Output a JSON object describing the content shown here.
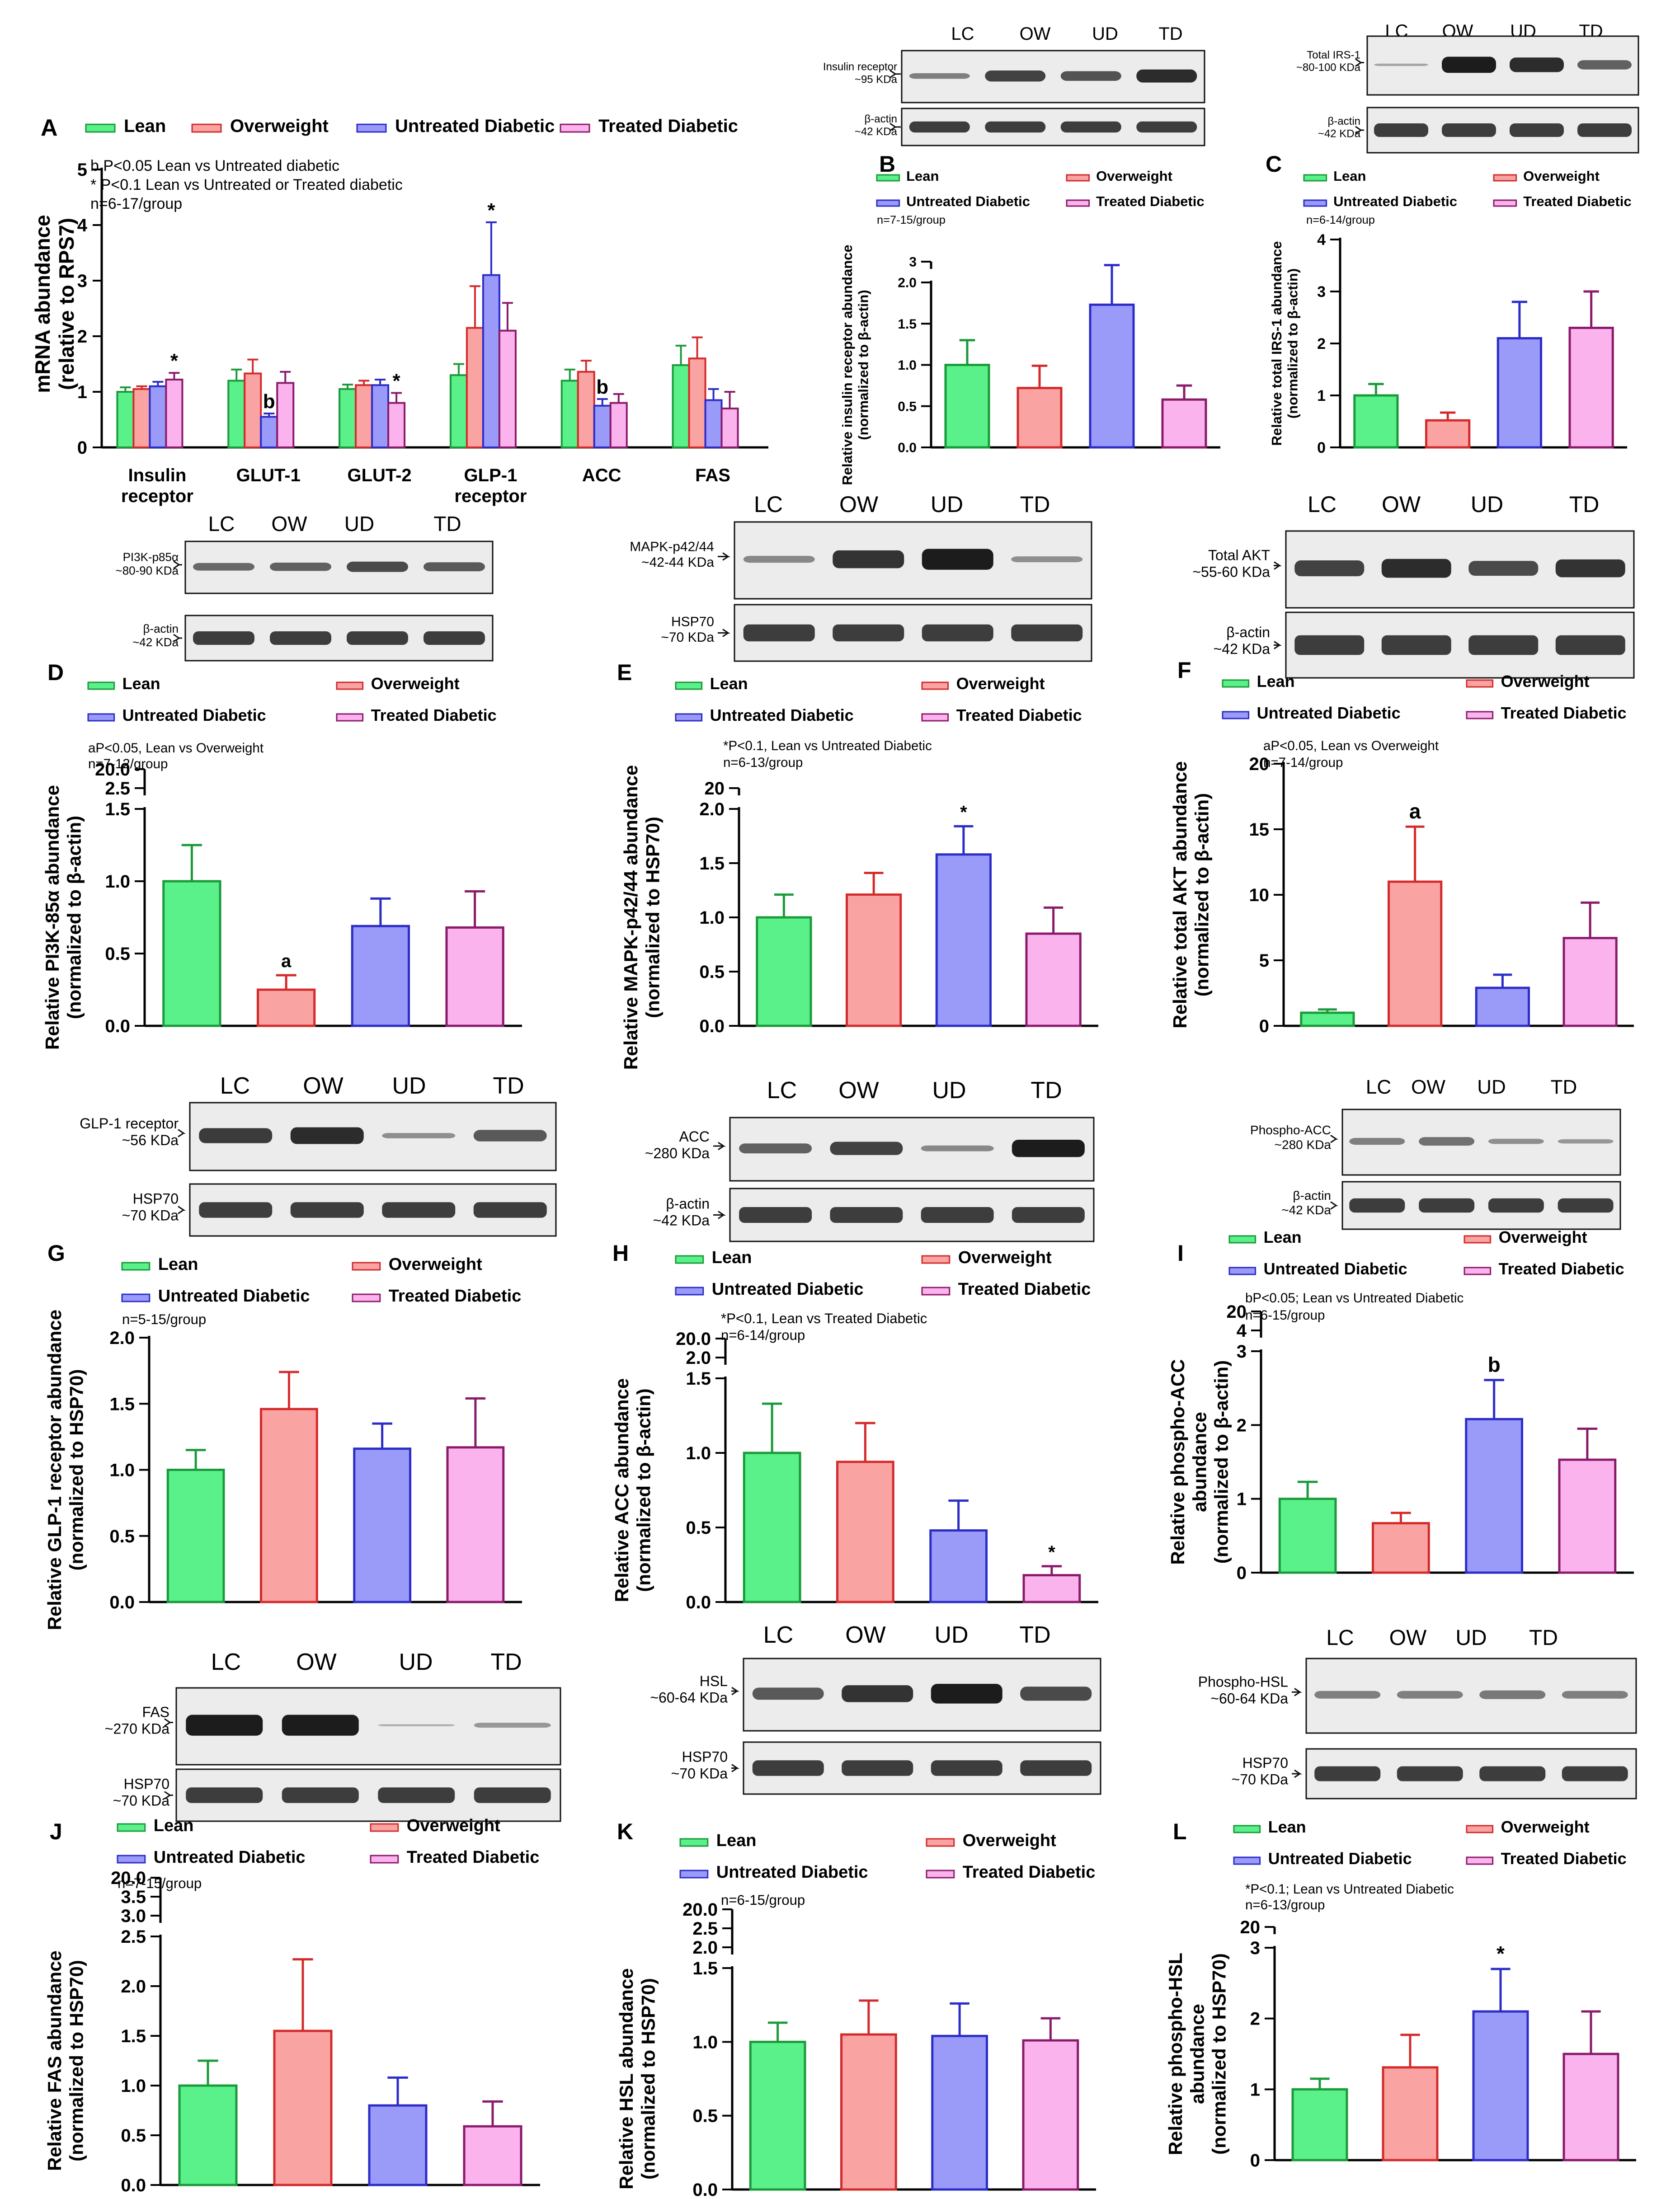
{
  "colors": {
    "lean": "#5af08a",
    "lean_edge": "#1a9a3a",
    "overweight": "#f9a3a3",
    "overweight_edge": "#d42a2a",
    "untreated": "#9a9af8",
    "untreated_edge": "#2c2cc8",
    "treated": "#fbb3ee",
    "treated_edge": "#8a1a6a"
  },
  "groups": [
    "Lean",
    "Overweight",
    "Untreated Diabetic",
    "Treated Diabetic"
  ],
  "lanes": [
    "LC",
    "OW",
    "UD",
    "TD"
  ],
  "blots": {
    "B": {
      "top": "Insulin receptor\n~95 KDa",
      "bottom": "β-actin\n~42 KDa"
    },
    "C": {
      "top": "Total IRS-1\n~80-100 KDa",
      "bottom": "β-actin\n~42 KDa"
    },
    "D": {
      "top": "PI3K-p85α\n~80-90 KDa",
      "bottom": "β-actin\n~42 KDa"
    },
    "E": {
      "top": "MAPK-p42/44\n~42-44 KDa",
      "bottom": "HSP70\n~70 KDa"
    },
    "F": {
      "top": "Total AKT\n~55-60 KDa",
      "bottom": "β-actin\n~42 KDa"
    },
    "G": {
      "top": "GLP-1 receptor\n~56 KDa",
      "bottom": "HSP70\n~70 KDa"
    },
    "H": {
      "top": "ACC\n~280 KDa",
      "bottom": "β-actin\n~42 KDa"
    },
    "I": {
      "top": "Phospho-ACC\n~280 KDa",
      "bottom": "β-actin\n~42 KDa"
    },
    "J": {
      "top": "FAS\n~270 KDa",
      "bottom": "HSP70\n~70 KDa"
    },
    "K": {
      "top": "HSL\n~60-64 KDa",
      "bottom": "HSP70\n~70 KDa"
    },
    "L": {
      "top": "Phospho-HSL\n~60-64 KDa",
      "bottom": "HSP70\n~70 KDa"
    }
  },
  "chart_data": [
    {
      "id": "A",
      "type": "bar",
      "ylabel": "mRNA abundance\n(relative to RPS7)",
      "ylim": [
        0,
        5
      ],
      "yticks": [
        0,
        1,
        2,
        3,
        4,
        5
      ],
      "categories": [
        "Insulin\nreceptor",
        "GLUT-1",
        "GLUT-2",
        "GLP-1\nreceptor",
        "ACC",
        "FAS"
      ],
      "notes": [
        "b P<0.05 Lean vs Untreated diabetic",
        "* P<0.1 Lean vs Untreated or Treated diabetic",
        "n=6-17/group"
      ],
      "series": [
        {
          "name": "Lean",
          "values": [
            1.0,
            1.2,
            1.05,
            1.3,
            1.2,
            1.48
          ],
          "errors": [
            0.08,
            0.2,
            0.08,
            0.2,
            0.2,
            0.35
          ],
          "marks": [
            "",
            "",
            "",
            "",
            "",
            ""
          ]
        },
        {
          "name": "Overweight",
          "values": [
            1.05,
            1.33,
            1.12,
            2.15,
            1.36,
            1.6
          ],
          "errors": [
            0.05,
            0.25,
            0.08,
            0.75,
            0.2,
            0.38
          ],
          "marks": [
            "",
            "",
            "",
            "",
            "",
            ""
          ]
        },
        {
          "name": "Untreated Diabetic",
          "values": [
            1.1,
            0.55,
            1.12,
            3.1,
            0.75,
            0.85
          ],
          "errors": [
            0.08,
            0.06,
            0.1,
            0.95,
            0.12,
            0.2
          ],
          "marks": [
            "",
            "b",
            "",
            "*",
            "b",
            ""
          ]
        },
        {
          "name": "Treated Diabetic",
          "values": [
            1.22,
            1.16,
            0.8,
            2.1,
            0.8,
            0.7
          ],
          "errors": [
            0.12,
            0.2,
            0.18,
            0.5,
            0.16,
            0.3
          ],
          "marks": [
            "*",
            "",
            "*",
            "",
            "",
            ""
          ]
        }
      ]
    },
    {
      "id": "B",
      "type": "bar",
      "ylabel": "Relative insulin receptor abundance\n(normalized to β-actin)",
      "ylim": [
        0,
        2.0
      ],
      "yticks": [
        0.0,
        0.5,
        1.0,
        1.5,
        2.0
      ],
      "axis_break": "3",
      "tick_labels": [
        "0.0",
        "0.5",
        "1.0",
        "1.5",
        "2.0"
      ],
      "notes": [
        "n=7-15/group"
      ],
      "values": [
        1.0,
        0.72,
        1.73,
        0.58
      ],
      "errors": [
        0.3,
        0.27,
        0.48,
        0.17
      ],
      "marks": [
        "",
        "",
        "",
        ""
      ]
    },
    {
      "id": "C",
      "type": "bar",
      "ylabel": "Relative total IRS-1 abundance\n(normalized to β-actin)",
      "ylim": [
        0,
        4
      ],
      "yticks": [
        0,
        1,
        2,
        3,
        4
      ],
      "axis_break": "",
      "tick_labels": [
        "0",
        "1",
        "2",
        "3",
        "4"
      ],
      "notes": [
        "n=6-14/group"
      ],
      "values": [
        1.0,
        0.52,
        2.1,
        2.3
      ],
      "errors": [
        0.22,
        0.15,
        0.7,
        0.7
      ],
      "marks": [
        "",
        "",
        "",
        ""
      ]
    },
    {
      "id": "D",
      "type": "bar",
      "ylabel": "Relative PI3K-85α abundance\n(normalized to β-actin)",
      "ylim": [
        0,
        1.5
      ],
      "yticks": [
        0.0,
        0.5,
        1.0,
        1.5
      ],
      "axis_break": "20.0\n2.5",
      "tick_labels": [
        "0.0",
        "0.5",
        "1.0",
        "1.5"
      ],
      "notes": [
        "aP<0.05, Lean vs Overweight",
        "n=7-12/group"
      ],
      "values": [
        1.0,
        0.25,
        0.69,
        0.68
      ],
      "errors": [
        0.25,
        0.1,
        0.19,
        0.25
      ],
      "marks": [
        "",
        "a",
        "",
        ""
      ]
    },
    {
      "id": "E",
      "type": "bar",
      "ylabel": "Relative MAPK-p42/44 abundance\n(normalized to HSP70)",
      "ylim": [
        0,
        2.0
      ],
      "yticks": [
        0.0,
        0.5,
        1.0,
        1.5,
        2.0
      ],
      "axis_break": "20",
      "tick_labels": [
        "0.0",
        "0.5",
        "1.0",
        "1.5",
        "2.0"
      ],
      "notes": [
        "*P<0.1, Lean vs Untreated Diabetic",
        "n=6-13/group"
      ],
      "values": [
        1.0,
        1.21,
        1.58,
        0.85
      ],
      "errors": [
        0.21,
        0.2,
        0.26,
        0.24
      ],
      "marks": [
        "",
        "",
        "*",
        ""
      ]
    },
    {
      "id": "F",
      "type": "bar",
      "ylabel": "Relative total AKT abundance\n(normalized to β-actin)",
      "ylim": [
        0,
        20
      ],
      "yticks": [
        0,
        5,
        10,
        15,
        20
      ],
      "axis_break": "",
      "tick_labels": [
        "0",
        "5",
        "10",
        "15",
        "20"
      ],
      "notes": [
        "aP<0.05, Lean vs Overweight",
        "n=7-14/group"
      ],
      "values": [
        1.0,
        11.0,
        2.9,
        6.7
      ],
      "errors": [
        0.25,
        4.2,
        1.0,
        2.7
      ],
      "marks": [
        "",
        "a",
        "",
        ""
      ]
    },
    {
      "id": "G",
      "type": "bar",
      "ylabel": "Relative GLP-1 receptor abundance\n(normalized to HSP70)",
      "ylim": [
        0,
        2.0
      ],
      "yticks": [
        0.0,
        0.5,
        1.0,
        1.5,
        2.0
      ],
      "axis_break": "",
      "tick_labels": [
        "0.0",
        "0.5",
        "1.0",
        "1.5",
        "2.0"
      ],
      "notes": [
        "n=5-15/group"
      ],
      "values": [
        1.0,
        1.46,
        1.16,
        1.17
      ],
      "errors": [
        0.15,
        0.28,
        0.19,
        0.37
      ],
      "marks": [
        "",
        "",
        "",
        ""
      ]
    },
    {
      "id": "H",
      "type": "bar",
      "ylabel": "Relative ACC abundance\n(normalized to β-actin)",
      "ylim": [
        0,
        1.5
      ],
      "yticks": [
        0.0,
        0.5,
        1.0,
        1.5
      ],
      "axis_break": "20.0\n2.0",
      "tick_labels": [
        "0.0",
        "0.5",
        "1.0",
        "1.5"
      ],
      "notes": [
        "*P<0.1, Lean vs Treated Diabetic",
        "n=6-14/group"
      ],
      "values": [
        1.0,
        0.94,
        0.48,
        0.18
      ],
      "errors": [
        0.33,
        0.26,
        0.2,
        0.06
      ],
      "marks": [
        "",
        "",
        "",
        "*"
      ]
    },
    {
      "id": "I",
      "type": "bar",
      "ylabel": "Relative phospho-ACC\nabundance\n(normalized to β-actin)",
      "ylim": [
        0,
        3
      ],
      "yticks": [
        0,
        1,
        2,
        3
      ],
      "axis_break": "20\n4",
      "tick_labels": [
        "0",
        "1",
        "2",
        "3"
      ],
      "notes": [
        "bP<0.05; Lean vs Untreated Diabetic",
        "n=6-15/group"
      ],
      "values": [
        1.0,
        0.67,
        2.08,
        1.53
      ],
      "errors": [
        0.23,
        0.14,
        0.53,
        0.42
      ],
      "marks": [
        "",
        "",
        "b",
        ""
      ]
    },
    {
      "id": "J",
      "type": "bar",
      "ylabel": "Relative FAS abundance\n(normalized to HSP70)",
      "ylim": [
        0,
        2.5
      ],
      "yticks": [
        0.0,
        0.5,
        1.0,
        1.5,
        2.0,
        2.5
      ],
      "axis_break": "20.0\n3.5\n3.0",
      "tick_labels": [
        "0.0",
        "0.5",
        "1.0",
        "1.5",
        "2.0",
        "2.5"
      ],
      "notes": [
        "n=7-15/group"
      ],
      "values": [
        1.0,
        1.55,
        0.8,
        0.59
      ],
      "errors": [
        0.25,
        0.72,
        0.28,
        0.25
      ],
      "marks": [
        "",
        "",
        "",
        ""
      ]
    },
    {
      "id": "K",
      "type": "bar",
      "ylabel": "Relative HSL abundance\n(normalized to HSP70)",
      "ylim": [
        0,
        1.5
      ],
      "yticks": [
        0.0,
        0.5,
        1.0,
        1.5
      ],
      "axis_break": "20.0\n2.5\n2.0",
      "tick_labels": [
        "0.0",
        "0.5",
        "1.0",
        "1.5"
      ],
      "notes": [
        "n=6-15/group"
      ],
      "values": [
        1.0,
        1.05,
        1.04,
        1.01
      ],
      "errors": [
        0.13,
        0.23,
        0.22,
        0.15
      ],
      "marks": [
        "",
        "",
        "",
        ""
      ]
    },
    {
      "id": "L",
      "type": "bar",
      "ylabel": "Relative phospho-HSL\nabundance\n(normalized to HSP70)",
      "ylim": [
        0,
        3
      ],
      "yticks": [
        0,
        1,
        2,
        3
      ],
      "axis_break": "20",
      "tick_labels": [
        "0",
        "1",
        "2",
        "3"
      ],
      "notes": [
        "*P<0.1; Lean vs Untreated Diabetic",
        "n=6-13/group"
      ],
      "values": [
        1.0,
        1.31,
        2.1,
        1.5
      ],
      "errors": [
        0.15,
        0.46,
        0.6,
        0.6
      ],
      "marks": [
        "",
        "",
        "*",
        ""
      ]
    }
  ]
}
